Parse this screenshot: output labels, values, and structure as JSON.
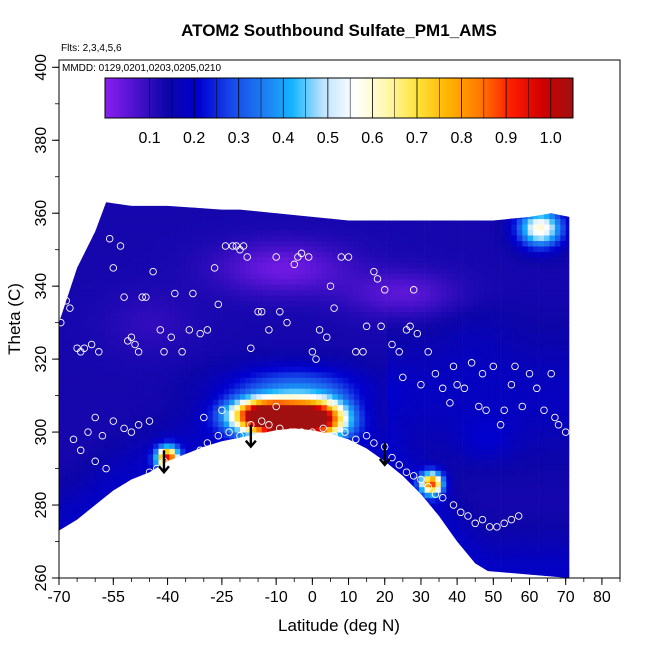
{
  "chart_data": {
    "type": "heatmap",
    "title": "ATOM2 Southbound Sulfate_PM1_AMS",
    "flights_label": "Flts: 2,3,4,5,6",
    "dates_label": "MMDD: 0129,0201,0203,0205,0210",
    "xlabel": "Latitude (deg N)",
    "ylabel": "Theta (C)",
    "xlim": [
      -70,
      85
    ],
    "ylim": [
      260,
      402
    ],
    "x_major_ticks": [
      "-70",
      "-55",
      "-40",
      "-25",
      "-10",
      "0",
      "10",
      "20",
      "30",
      "40",
      "50",
      "60",
      "70",
      "80"
    ],
    "y_major_ticks": [
      "260",
      "280",
      "300",
      "320",
      "340",
      "360",
      "380",
      "400"
    ],
    "colorbar": {
      "ticks": [
        "0.1",
        "0.2",
        "0.3",
        "0.4",
        "0.5",
        "0.6",
        "0.7",
        "0.8",
        "0.9",
        "1.0"
      ],
      "range": [
        0.0,
        1.05
      ],
      "colors": [
        "#8a1ff2",
        "#4a12cc",
        "#0d05a8",
        "#0000d0",
        "#1644e8",
        "#1e78f0",
        "#14b4ff",
        "#bfe3ff",
        "#ffffff",
        "#fff8b0",
        "#ffe33a",
        "#ffb300",
        "#ff7a00",
        "#ff1e00",
        "#d20000",
        "#a01010"
      ]
    },
    "surface_theta": [
      [
        -70,
        273
      ],
      [
        -65,
        276
      ],
      [
        -60,
        280
      ],
      [
        -55,
        284
      ],
      [
        -50,
        287
      ],
      [
        -45,
        289
      ],
      [
        -40,
        292
      ],
      [
        -35,
        294
      ],
      [
        -30,
        296
      ],
      [
        -25,
        297.5
      ],
      [
        -20,
        298.5
      ],
      [
        -15,
        299.5
      ],
      [
        -10,
        300.5
      ],
      [
        -5,
        301
      ],
      [
        0,
        300.5
      ],
      [
        5,
        299.5
      ],
      [
        10,
        298
      ],
      [
        15,
        295.5
      ],
      [
        20,
        292
      ],
      [
        25,
        288
      ],
      [
        30,
        283
      ],
      [
        35,
        277
      ],
      [
        40,
        270
      ],
      [
        45,
        264
      ],
      [
        50,
        261
      ]
    ],
    "domain_top": [
      [
        -70,
        330
      ],
      [
        -65,
        345
      ],
      [
        -60,
        355
      ],
      [
        -57,
        363
      ],
      [
        -50,
        362
      ],
      [
        -40,
        362
      ],
      [
        -25,
        361
      ],
      [
        -20,
        361
      ],
      [
        -10,
        360
      ],
      [
        0,
        359
      ],
      [
        10,
        358
      ],
      [
        20,
        358
      ],
      [
        30,
        358
      ],
      [
        40,
        358
      ],
      [
        50,
        358
      ],
      [
        60,
        359
      ],
      [
        66,
        360
      ],
      [
        71,
        359
      ]
    ],
    "domain_bottom": [
      [
        50,
        262
      ],
      [
        60,
        262
      ],
      [
        71,
        260
      ]
    ],
    "field_features": [
      {
        "lat": -7,
        "theta": 303,
        "value": 1.0,
        "sx": 11,
        "sy": 5
      },
      {
        "lat": -14,
        "theta": 305,
        "value": 0.78,
        "sx": 9,
        "sy": 4
      },
      {
        "lat": 2,
        "theta": 304,
        "value": 0.72,
        "sx": 8,
        "sy": 5
      },
      {
        "lat": -40,
        "theta": 293,
        "value": 0.9,
        "sx": 3,
        "sy": 3
      },
      {
        "lat": 33,
        "theta": 286,
        "value": 0.85,
        "sx": 3,
        "sy": 3
      },
      {
        "lat": 63,
        "theta": 356,
        "value": 0.6,
        "sx": 6,
        "sy": 5
      },
      {
        "lat": -5,
        "theta": 312,
        "value": 0.32,
        "sx": 18,
        "sy": 6
      },
      {
        "lat": -8,
        "theta": 345,
        "value": 0.03,
        "sx": 18,
        "sy": 7
      },
      {
        "lat": 25,
        "theta": 338,
        "value": 0.05,
        "sx": 15,
        "sy": 6
      },
      {
        "lat": -45,
        "theta": 330,
        "value": 0.1,
        "sx": 12,
        "sy": 8
      },
      {
        "lat": 45,
        "theta": 325,
        "value": 0.15,
        "sx": 10,
        "sy": 10
      },
      {
        "lat": 48,
        "theta": 298,
        "value": 0.18,
        "sx": 8,
        "sy": 6
      }
    ],
    "arrows": [
      [
        -41,
        295
      ],
      [
        -17,
        302
      ],
      [
        20,
        297
      ]
    ],
    "obs_points": [
      [
        -69.5,
        330
      ],
      [
        -68,
        336
      ],
      [
        -67,
        334
      ],
      [
        -65,
        323
      ],
      [
        -64,
        322
      ],
      [
        -63,
        323
      ],
      [
        -61,
        324
      ],
      [
        -59,
        322
      ],
      [
        -56,
        353
      ],
      [
        -55,
        345
      ],
      [
        -53,
        351
      ],
      [
        -52,
        337
      ],
      [
        -51,
        325
      ],
      [
        -50,
        326
      ],
      [
        -49,
        324
      ],
      [
        -48,
        322
      ],
      [
        -47,
        337
      ],
      [
        -46,
        337
      ],
      [
        -44,
        344
      ],
      [
        -42,
        328
      ],
      [
        -41,
        322
      ],
      [
        -39,
        326
      ],
      [
        -38,
        338
      ],
      [
        -36,
        322
      ],
      [
        -34,
        328
      ],
      [
        -33,
        338
      ],
      [
        -31,
        327
      ],
      [
        -29,
        328
      ],
      [
        -27,
        345
      ],
      [
        -26,
        335
      ],
      [
        -24,
        351
      ],
      [
        -22,
        351
      ],
      [
        -21,
        351
      ],
      [
        -20,
        350
      ],
      [
        -19,
        351
      ],
      [
        -18,
        348
      ],
      [
        -17,
        323
      ],
      [
        -15,
        333
      ],
      [
        -14,
        333
      ],
      [
        -12,
        328
      ],
      [
        -10,
        348
      ],
      [
        -9,
        333
      ],
      [
        -7,
        330
      ],
      [
        -5,
        346
      ],
      [
        -4,
        348
      ],
      [
        -3,
        349
      ],
      [
        -1,
        348
      ],
      [
        0,
        322
      ],
      [
        1,
        320
      ],
      [
        2,
        328
      ],
      [
        4,
        326
      ],
      [
        5,
        340
      ],
      [
        6,
        334
      ],
      [
        8,
        348
      ],
      [
        10,
        348
      ],
      [
        12,
        322
      ],
      [
        14,
        322
      ],
      [
        15,
        329
      ],
      [
        17,
        344
      ],
      [
        18,
        342
      ],
      [
        19,
        329
      ],
      [
        20,
        339
      ],
      [
        22,
        324
      ],
      [
        24,
        322
      ],
      [
        25,
        315
      ],
      [
        26,
        328
      ],
      [
        27,
        329
      ],
      [
        28,
        339
      ],
      [
        29,
        327
      ],
      [
        30,
        313
      ],
      [
        32,
        322
      ],
      [
        34,
        316
      ],
      [
        36,
        312
      ],
      [
        38,
        308
      ],
      [
        39,
        318
      ],
      [
        40,
        313
      ],
      [
        42,
        312
      ],
      [
        44,
        319
      ],
      [
        46,
        307
      ],
      [
        47,
        316
      ],
      [
        48,
        306
      ],
      [
        50,
        318
      ],
      [
        52,
        302
      ],
      [
        53,
        306
      ],
      [
        55,
        313
      ],
      [
        56,
        318
      ],
      [
        58,
        307
      ],
      [
        60,
        316
      ],
      [
        62,
        312
      ],
      [
        64,
        306
      ],
      [
        66,
        316
      ],
      [
        67,
        304
      ],
      [
        68,
        302
      ],
      [
        70,
        300
      ],
      [
        -66,
        298
      ],
      [
        -64,
        295
      ],
      [
        -60,
        292
      ],
      [
        -57,
        290
      ],
      [
        -54,
        281
      ],
      [
        -52,
        282
      ],
      [
        -49,
        284
      ],
      [
        -47,
        286
      ],
      [
        -45,
        289
      ],
      [
        -43,
        290
      ],
      [
        -41,
        292
      ],
      [
        -39,
        291
      ],
      [
        -37,
        292
      ],
      [
        -34,
        293
      ],
      [
        -31,
        295
      ],
      [
        -29,
        297
      ],
      [
        -26,
        299
      ],
      [
        -23,
        300
      ],
      [
        -20,
        299
      ],
      [
        -17,
        302
      ],
      [
        -14,
        303
      ],
      [
        -12,
        302
      ],
      [
        -9,
        301
      ],
      [
        -6,
        300
      ],
      [
        -3,
        300
      ],
      [
        0,
        300
      ],
      [
        3,
        301
      ],
      [
        6,
        299
      ],
      [
        9,
        300
      ],
      [
        12,
        298
      ],
      [
        15,
        299
      ],
      [
        17,
        297
      ],
      [
        20,
        296
      ],
      [
        22,
        293
      ],
      [
        24,
        291
      ],
      [
        26,
        289
      ],
      [
        28,
        288
      ],
      [
        30,
        287
      ],
      [
        32,
        285
      ],
      [
        34,
        283
      ],
      [
        36,
        282
      ],
      [
        39,
        280
      ],
      [
        41,
        278
      ],
      [
        43,
        277
      ],
      [
        45,
        275
      ],
      [
        47,
        276
      ],
      [
        49,
        274
      ],
      [
        51,
        274
      ],
      [
        53,
        275
      ],
      [
        55,
        276
      ],
      [
        57,
        277
      ],
      [
        -30,
        304
      ],
      [
        -25,
        306
      ],
      [
        -10,
        307
      ],
      [
        5,
        308
      ],
      [
        -45,
        303
      ],
      [
        -50,
        300
      ],
      [
        -55,
        303
      ],
      [
        -60,
        304
      ],
      [
        -62,
        300
      ],
      [
        -58,
        299
      ],
      [
        -52,
        301
      ],
      [
        -48,
        302
      ]
    ]
  }
}
